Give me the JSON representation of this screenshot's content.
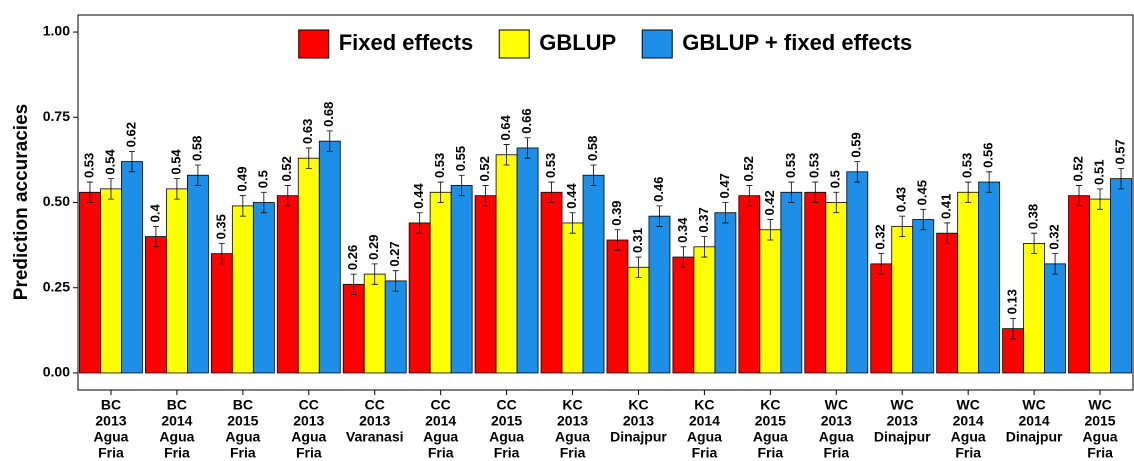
{
  "chart_data": {
    "type": "bar",
    "ylabel": "Prediction accuracies",
    "categories": [
      [
        "BC",
        "2013",
        "Agua",
        "Fria"
      ],
      [
        "BC",
        "2014",
        "Agua",
        "Fria"
      ],
      [
        "BC",
        "2015",
        "Agua",
        "Fria"
      ],
      [
        "CC",
        "2013",
        "Agua",
        "Fria"
      ],
      [
        "CC",
        "2013",
        "Varanasi"
      ],
      [
        "CC",
        "2014",
        "Agua",
        "Fria"
      ],
      [
        "CC",
        "2015",
        "Agua",
        "Fria"
      ],
      [
        "KC",
        "2013",
        "Agua",
        "Fria"
      ],
      [
        "KC",
        "2013",
        "Dinajpur"
      ],
      [
        "KC",
        "2014",
        "Agua",
        "Fria"
      ],
      [
        "KC",
        "2015",
        "Agua",
        "Fria"
      ],
      [
        "WC",
        "2013",
        "Agua",
        "Fria"
      ],
      [
        "WC",
        "2013",
        "Dinajpur"
      ],
      [
        "WC",
        "2014",
        "Agua",
        "Fria"
      ],
      [
        "WC",
        "2014",
        "Dinajpur"
      ],
      [
        "WC",
        "2015",
        "Agua",
        "Fria"
      ]
    ],
    "series": [
      {
        "name": "Fixed effects",
        "color": "#ff0000",
        "values": [
          0.53,
          0.4,
          0.35,
          0.52,
          0.26,
          0.44,
          0.52,
          0.53,
          0.39,
          0.34,
          0.52,
          0.53,
          0.32,
          0.41,
          0.13,
          0.52
        ],
        "errors": [
          0.03,
          0.03,
          0.03,
          0.03,
          0.03,
          0.03,
          0.03,
          0.03,
          0.03,
          0.03,
          0.03,
          0.03,
          0.03,
          0.03,
          0.03,
          0.03
        ]
      },
      {
        "name": "GBLUP",
        "color": "#ffff00",
        "values": [
          0.54,
          0.54,
          0.49,
          0.63,
          0.29,
          0.53,
          0.64,
          0.44,
          0.31,
          0.37,
          0.42,
          0.5,
          0.43,
          0.53,
          0.38,
          0.51
        ],
        "errors": [
          0.03,
          0.03,
          0.03,
          0.03,
          0.03,
          0.03,
          0.03,
          0.03,
          0.03,
          0.03,
          0.03,
          0.03,
          0.03,
          0.03,
          0.03,
          0.03
        ]
      },
      {
        "name": "GBLUP + fixed effects",
        "color": "#1e8fe8",
        "values": [
          0.62,
          0.58,
          0.5,
          0.68,
          0.27,
          0.55,
          0.66,
          0.58,
          0.46,
          0.47,
          0.53,
          0.59,
          0.45,
          0.56,
          0.32,
          0.57
        ],
        "errors": [
          0.03,
          0.03,
          0.03,
          0.03,
          0.03,
          0.03,
          0.03,
          0.03,
          0.03,
          0.03,
          0.03,
          0.03,
          0.03,
          0.03,
          0.03,
          0.03
        ]
      }
    ],
    "ylim": [
      -0.05,
      1.05
    ],
    "yticks": [
      {
        "value": 0,
        "label": "0.00"
      },
      {
        "value": 0.25,
        "label": "0.25"
      },
      {
        "value": 0.5,
        "label": "0.50"
      },
      {
        "value": 0.75,
        "label": "0.75"
      },
      {
        "value": 1,
        "label": "1.00"
      }
    ],
    "legend": "top"
  }
}
